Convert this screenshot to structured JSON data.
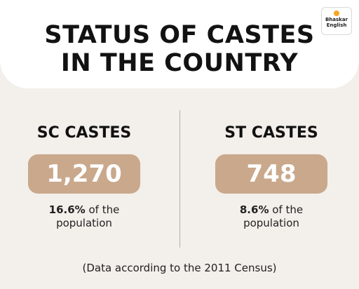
{
  "header": {
    "title_line1": "STATUS OF CASTES",
    "title_line2": "IN THE COUNTRY",
    "logo": {
      "line1": "Bhaskar",
      "line2": "English",
      "icon": "sun-dot-icon",
      "color": "#f5a623"
    }
  },
  "columns": [
    {
      "title": "SC CASTES",
      "count": "1,270",
      "percent": "16.6%",
      "note_rest": " of the",
      "note_line2": "population"
    },
    {
      "title": "ST CASTES",
      "count": "748",
      "percent": "8.6%",
      "note_rest": " of the",
      "note_line2": "population"
    }
  ],
  "footer": {
    "text": "(Data according to the 2011 Census)"
  },
  "colors": {
    "background": "#f3efea",
    "header": "#ffffff",
    "pill": "#c9a88c",
    "text": "#111111"
  }
}
